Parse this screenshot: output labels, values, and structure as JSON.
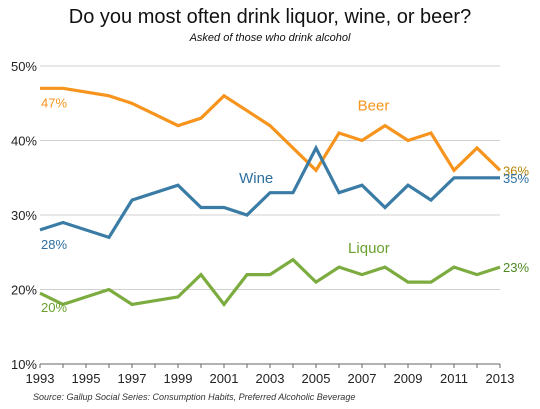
{
  "title": "Do you most often drink liquor, wine, or beer?",
  "subtitle": "Asked of those who drink alcohol",
  "source": "Source: Gallup Social Series: Consumption Habits, Preferred Alcoholic Beverage",
  "chart_data": {
    "type": "line",
    "title": "Do you most often drink liquor, wine, or beer?",
    "subtitle": "Asked of those who drink alcohol",
    "xlabel": "",
    "ylabel": "",
    "x": [
      1993,
      1994,
      1996,
      1997,
      1999,
      2000,
      2001,
      2002,
      2003,
      2004,
      2005,
      2006,
      2007,
      2008,
      2009,
      2010,
      2011,
      2012,
      2013
    ],
    "xlim": [
      1993,
      2013
    ],
    "ylim": [
      10,
      50
    ],
    "x_ticks": [
      1993,
      1995,
      1997,
      1999,
      2001,
      2003,
      2005,
      2007,
      2009,
      2011,
      2013
    ],
    "y_ticks": [
      10,
      20,
      30,
      40,
      50
    ],
    "y_tick_labels": [
      "10%",
      "20%",
      "30%",
      "40%",
      "50%"
    ],
    "grid": "horizontal",
    "legend": "none",
    "series": [
      {
        "name": "Beer",
        "color": "#f7941d",
        "label_color": "#f7941d",
        "end_label_color": "#b8860b",
        "label_year": 2007.5,
        "label_value": 44,
        "values": [
          47,
          47,
          46,
          45,
          42,
          43,
          46,
          44,
          42,
          39,
          36,
          41,
          40,
          42,
          40,
          41,
          36,
          39,
          36
        ],
        "start_label": "47%",
        "end_label": "36%"
      },
      {
        "name": "Wine",
        "color": "#3a7ca5",
        "label_color": "#2e6fa0",
        "end_label_color": "#2e6fa0",
        "label_year": 2002.4,
        "label_value": 34.3,
        "values": [
          28,
          29,
          27,
          32,
          34,
          31,
          31,
          30,
          33,
          33,
          39,
          33,
          34,
          31,
          34,
          32,
          35,
          35,
          35
        ],
        "start_label": "28%",
        "end_label": "35%"
      },
      {
        "name": "Liquor",
        "color": "#7cac3f",
        "label_color": "#6aa12e",
        "end_label_color": "#4e8a25",
        "label_year": 2007.3,
        "label_value": 24.9,
        "values": [
          19.5,
          18,
          20,
          18,
          19,
          22,
          18,
          22,
          22,
          24,
          21,
          23,
          22,
          23,
          21,
          21,
          23,
          22,
          23
        ],
        "start_label": "20%",
        "end_label": "23%"
      }
    ]
  }
}
